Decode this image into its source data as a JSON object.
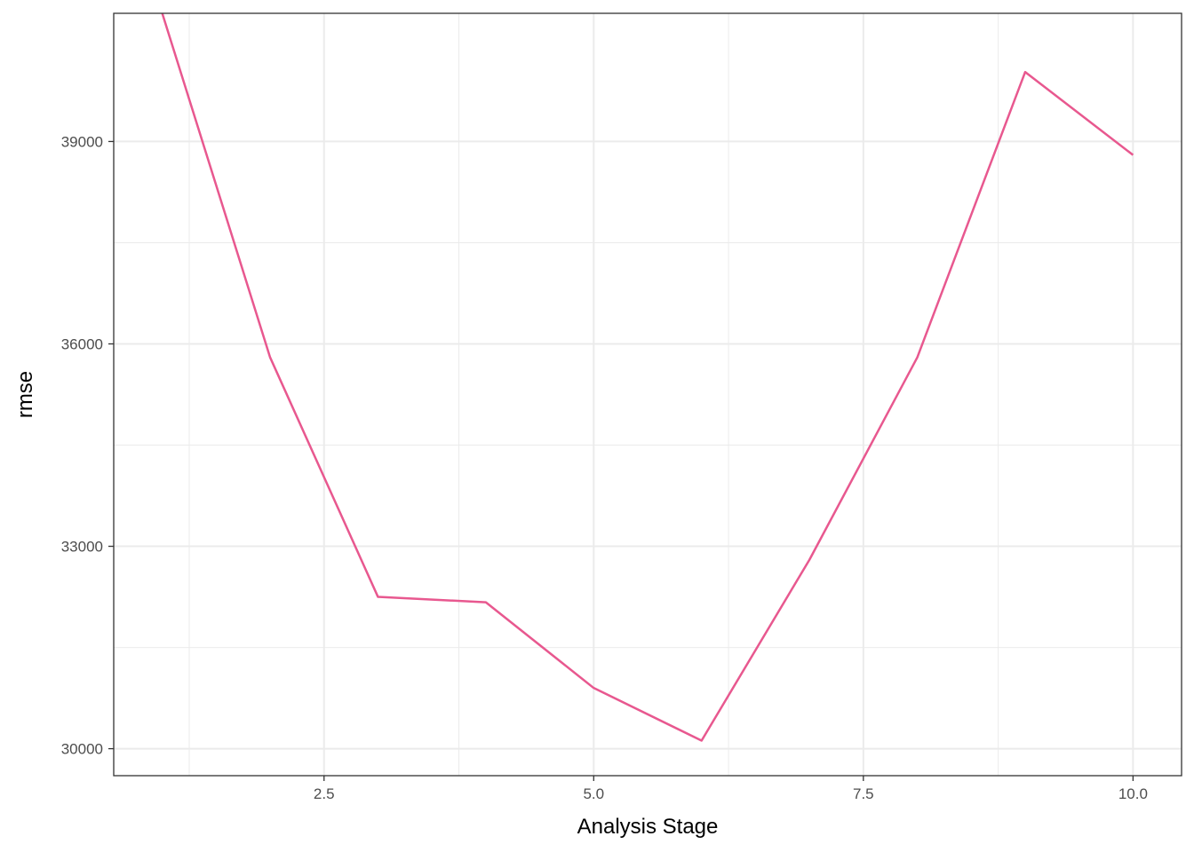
{
  "chart_data": {
    "type": "line",
    "title": "",
    "xlabel": "Analysis Stage",
    "ylabel": "rmse",
    "xlim": [
      0.55,
      10.45
    ],
    "ylim": [
      29600,
      40900
    ],
    "x_ticks": [
      2.5,
      5.0,
      7.5,
      10.0
    ],
    "x_tick_labels": [
      "2.5",
      "5.0",
      "7.5",
      "10.0"
    ],
    "y_ticks": [
      30000,
      33000,
      36000,
      39000
    ],
    "y_tick_labels": [
      "30000",
      "33000",
      "36000",
      "39000"
    ],
    "x_minor_ticks": [
      1.25,
      3.75,
      6.25,
      8.75
    ],
    "y_minor_ticks": [
      31500,
      34500,
      37500
    ],
    "grid": true,
    "legend": "none",
    "series": [
      {
        "x": [
          1,
          2,
          3,
          4,
          5,
          6,
          7,
          8,
          9,
          10
        ],
        "values": [
          40900,
          35800,
          32250,
          32170,
          30900,
          30120,
          32800,
          35800,
          40030,
          38800
        ],
        "color": "#e8588f"
      }
    ]
  }
}
